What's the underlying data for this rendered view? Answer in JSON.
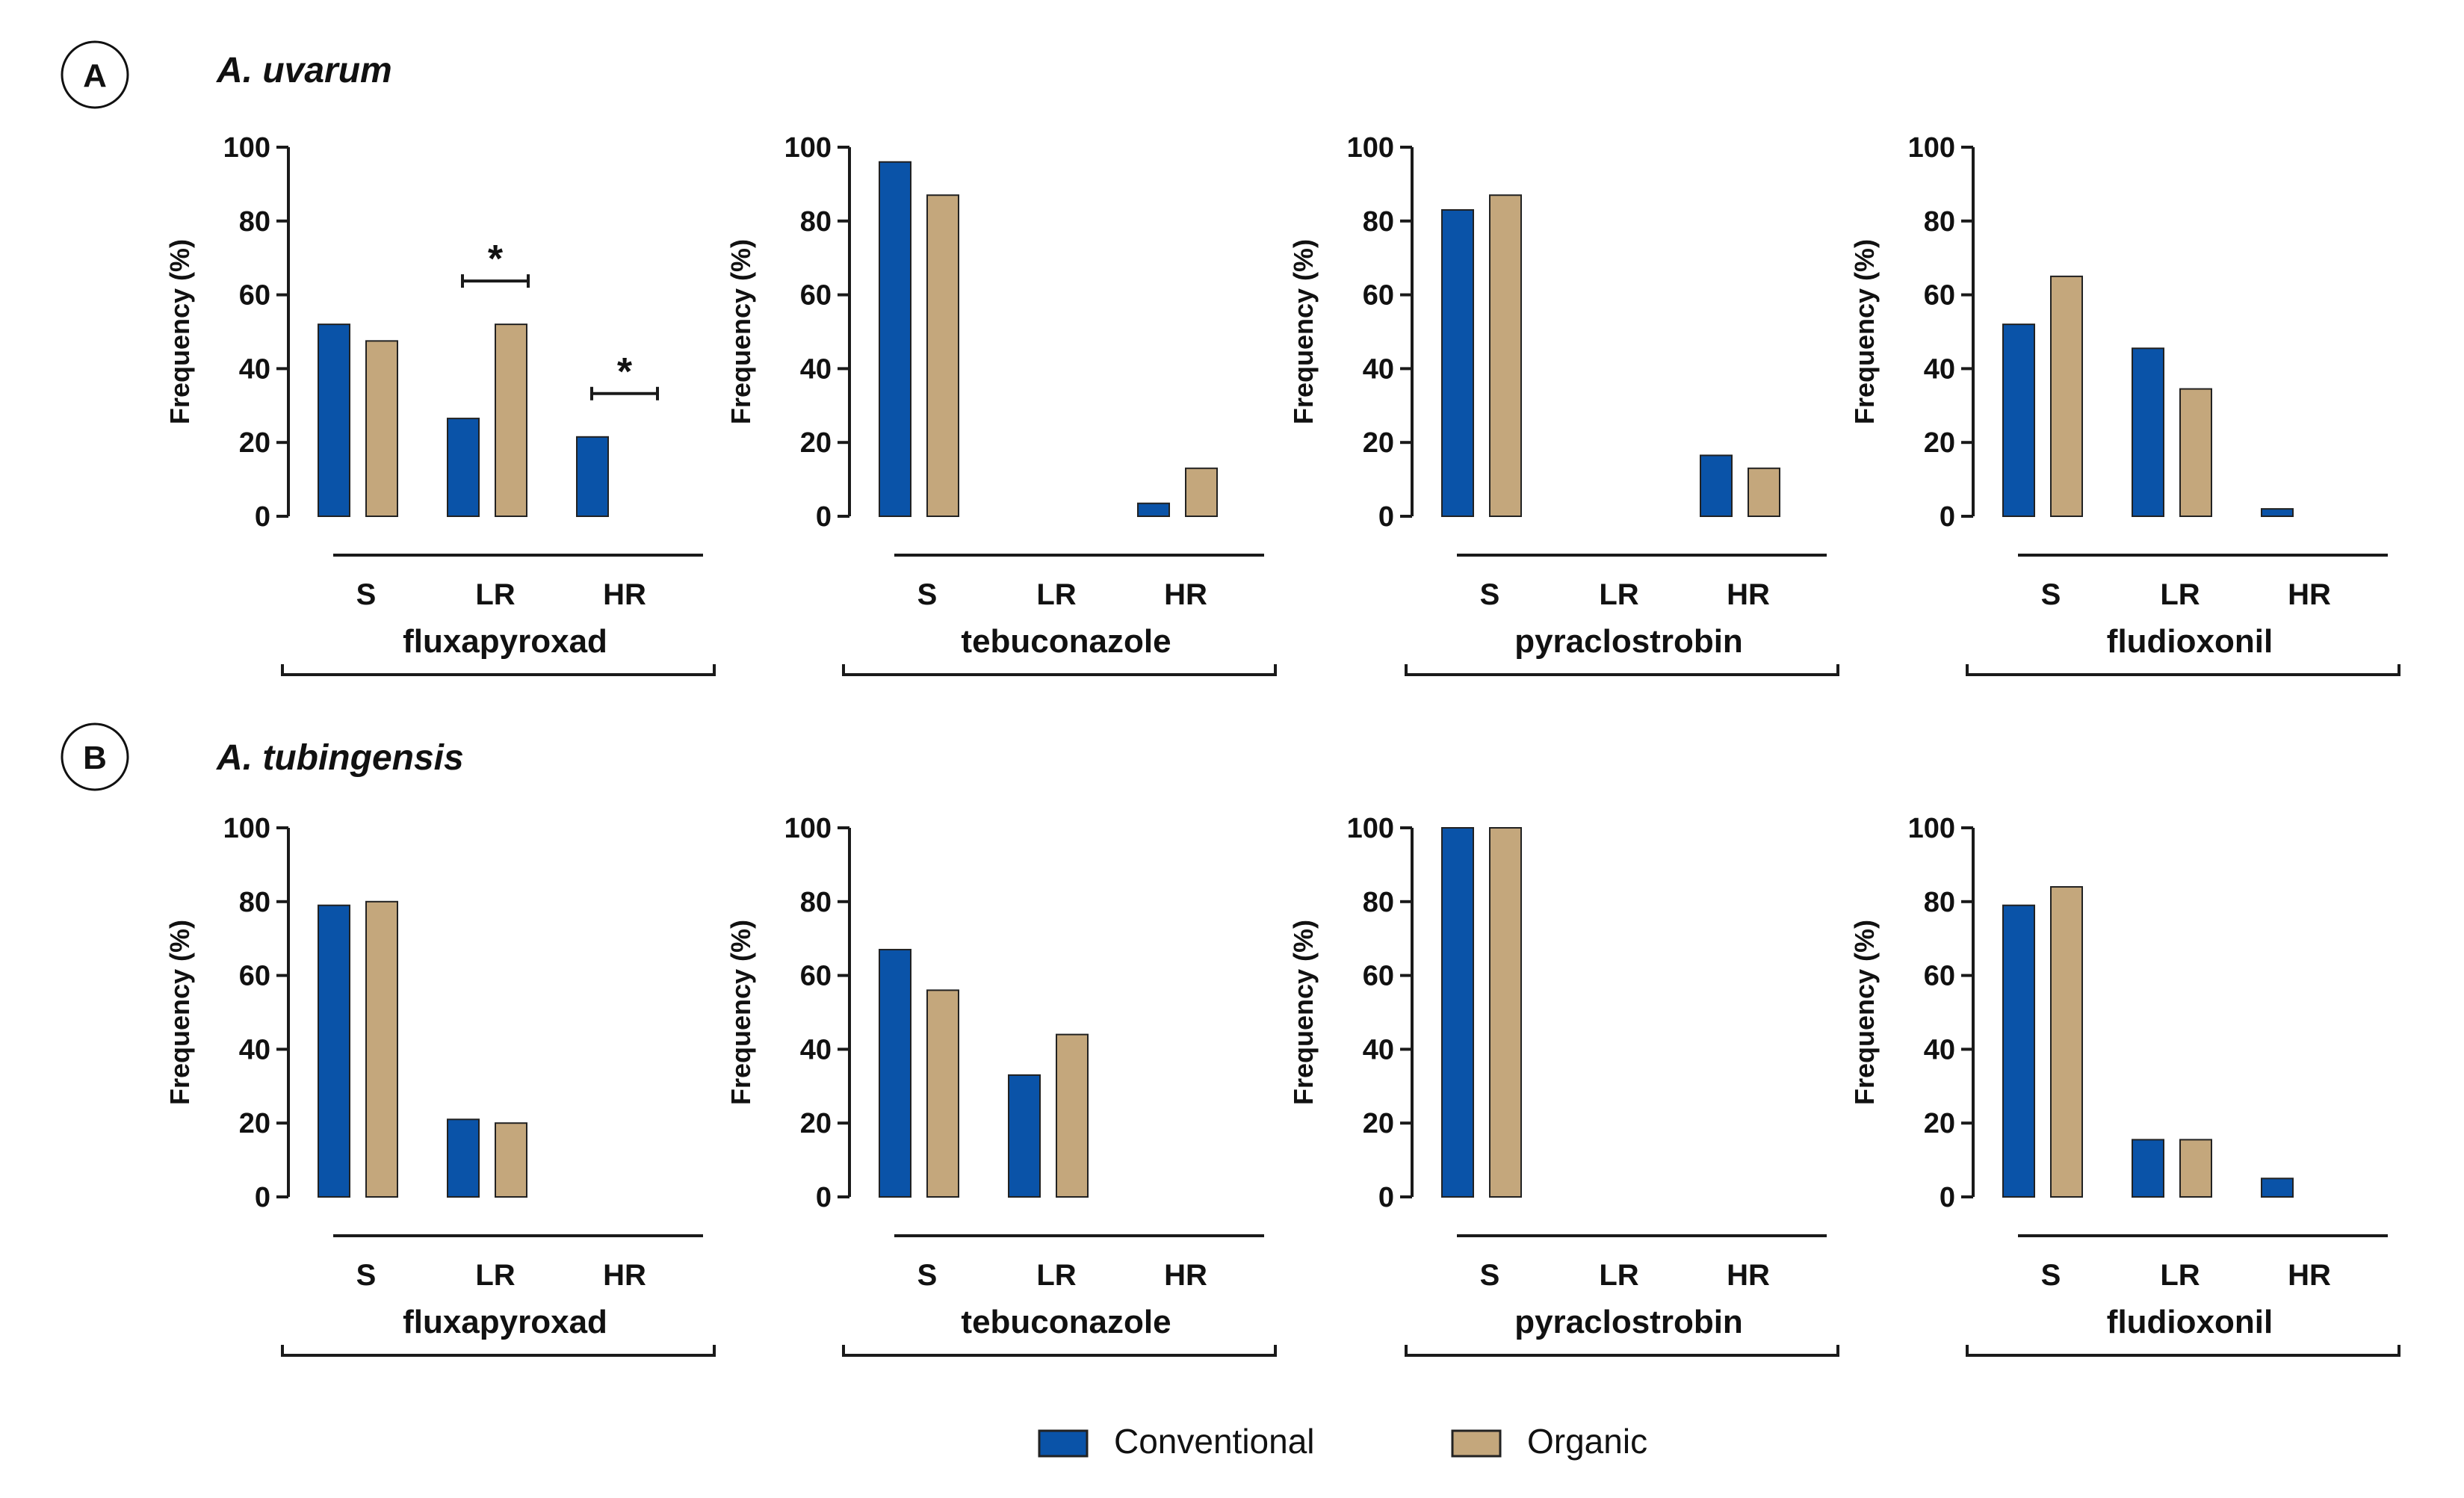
{
  "colors": {
    "conventional": "#0a53a8",
    "organic": "#c4a77c",
    "axis": "#1a1a1a"
  },
  "chart_data": {
    "type": "bar",
    "ylabel": "Frequency (%)",
    "ylim": [
      0,
      100
    ],
    "yticks": [
      "0",
      "20",
      "40",
      "60",
      "80",
      "100"
    ],
    "categories": [
      "S",
      "LR",
      "HR"
    ],
    "series_names": [
      "Conventional",
      "Organic"
    ],
    "significance_marker": "*",
    "rows": [
      {
        "letter": "A",
        "species": "A. uvarum",
        "panels": [
          {
            "fungicide": "fluxapyroxad",
            "series": [
              {
                "name": "Conventional",
                "values": [
                  52,
                  26.5,
                  21.5
                ]
              },
              {
                "name": "Organic",
                "values": [
                  47.5,
                  52,
                  0
                ]
              }
            ],
            "significance": [
              {
                "category": "LR",
                "label": "*"
              },
              {
                "category": "HR",
                "label": "*"
              }
            ]
          },
          {
            "fungicide": "tebuconazole",
            "series": [
              {
                "name": "Conventional",
                "values": [
                  96,
                  0,
                  3.5
                ]
              },
              {
                "name": "Organic",
                "values": [
                  87,
                  0,
                  13
                ]
              }
            ],
            "significance": []
          },
          {
            "fungicide": "pyraclostrobin",
            "series": [
              {
                "name": "Conventional",
                "values": [
                  83,
                  0,
                  16.5
                ]
              },
              {
                "name": "Organic",
                "values": [
                  87,
                  0,
                  13
                ]
              }
            ],
            "significance": []
          },
          {
            "fungicide": "fludioxonil",
            "series": [
              {
                "name": "Conventional",
                "values": [
                  52,
                  45.5,
                  2
                ]
              },
              {
                "name": "Organic",
                "values": [
                  65,
                  34.5,
                  0
                ]
              }
            ],
            "significance": []
          }
        ]
      },
      {
        "letter": "B",
        "species": "A. tubingensis",
        "panels": [
          {
            "fungicide": "fluxapyroxad",
            "series": [
              {
                "name": "Conventional",
                "values": [
                  79,
                  21,
                  0
                ]
              },
              {
                "name": "Organic",
                "values": [
                  80,
                  20,
                  0
                ]
              }
            ],
            "significance": []
          },
          {
            "fungicide": "tebuconazole",
            "series": [
              {
                "name": "Conventional",
                "values": [
                  67,
                  33,
                  0
                ]
              },
              {
                "name": "Organic",
                "values": [
                  56,
                  44,
                  0
                ]
              }
            ],
            "significance": []
          },
          {
            "fungicide": "pyraclostrobin",
            "series": [
              {
                "name": "Conventional",
                "values": [
                  100,
                  0,
                  0
                ]
              },
              {
                "name": "Organic",
                "values": [
                  100,
                  0,
                  0
                ]
              }
            ],
            "significance": []
          },
          {
            "fungicide": "fludioxonil",
            "series": [
              {
                "name": "Conventional",
                "values": [
                  79,
                  15.5,
                  5
                ]
              },
              {
                "name": "Organic",
                "values": [
                  84,
                  15.5,
                  0
                ]
              }
            ],
            "significance": []
          }
        ]
      }
    ],
    "legend": [
      {
        "label": "Conventional"
      },
      {
        "label": "Organic"
      }
    ]
  }
}
